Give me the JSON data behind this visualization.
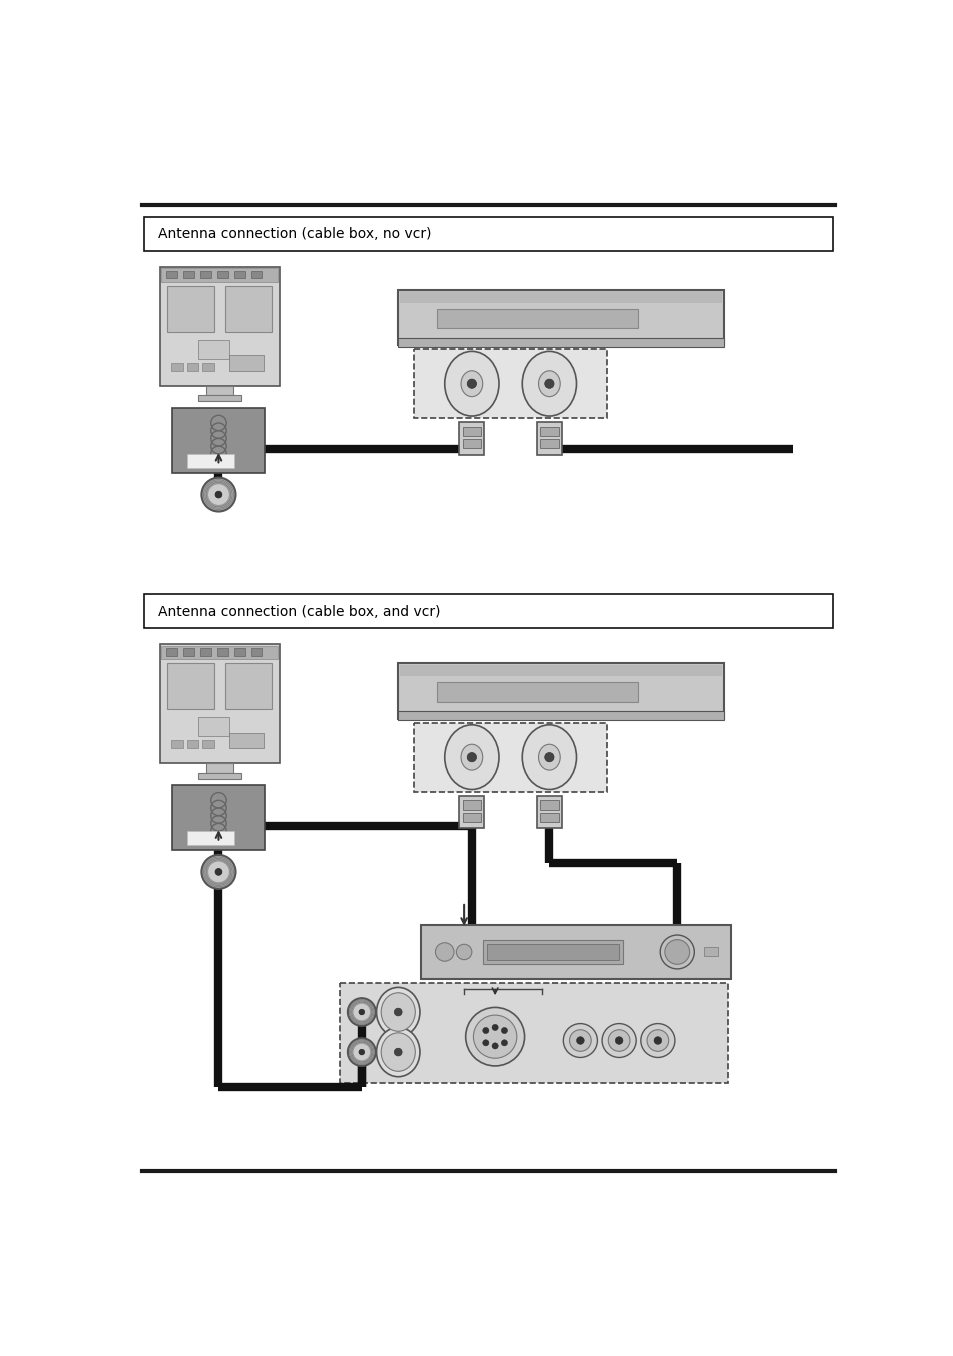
{
  "page_bg": "#ffffff",
  "line_color": "#1a1a1a",
  "section1_label": "Antenna connection (cable box, no vcr)",
  "section2_label": "Antenna connection (cable box, and vcr)",
  "label_fontsize": 10,
  "cable_lw": 6,
  "cable_color": "#111111",
  "device_gray": "#c8c8c8",
  "device_gray2": "#b8b8b8",
  "device_dark_gray": "#888888",
  "dashed_fill": "#d8d8d8",
  "tv_body_color": "#d0d0d0",
  "tv_screen_color": "#c0c0c0",
  "connector_box_color": "#888888",
  "rf_connector_outer": "#aaaaaa",
  "rf_connector_mid": "#cccccc",
  "rf_connector_dark": "#555555"
}
